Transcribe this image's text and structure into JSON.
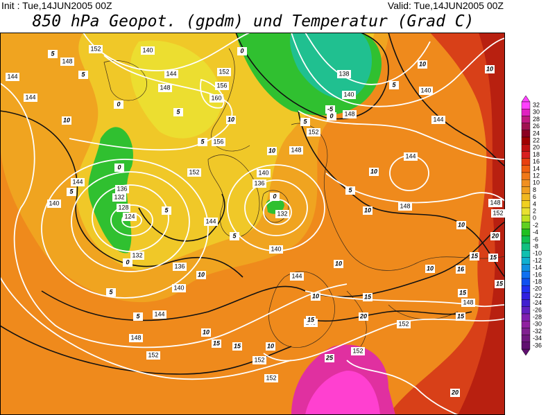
{
  "header": {
    "init": "Init : Tue,14JUN2005 00Z",
    "valid": "Valid: Tue,14JUN2005 00Z",
    "title": "850 hPa Geopot. (gpdm) und Temperatur (Grad C)"
  },
  "colorbar": {
    "levels": [
      32,
      30,
      28,
      26,
      24,
      22,
      20,
      18,
      16,
      14,
      12,
      10,
      8,
      6,
      4,
      2,
      0,
      -2,
      -4,
      -6,
      -8,
      -10,
      -12,
      -14,
      -16,
      -18,
      -20,
      -22,
      -24,
      -26,
      -28,
      -30,
      -32,
      -34,
      -36
    ],
    "colors": [
      "#ff40ff",
      "#e020c0",
      "#c01880",
      "#a01050",
      "#8b0020",
      "#a00000",
      "#c01010",
      "#d82020",
      "#e84010",
      "#f06010",
      "#f07818",
      "#f09020",
      "#f0a020",
      "#f0b820",
      "#f0d020",
      "#e8e030",
      "#c0e020",
      "#60d020",
      "#20c020",
      "#10c050",
      "#10c080",
      "#10c0b0",
      "#10b0d0",
      "#1090e0",
      "#1070f0",
      "#1050f0",
      "#2030f0",
      "#3020e0",
      "#4020d0",
      "#6020c0",
      "#8020b0",
      "#9020a0",
      "#802090",
      "#701880",
      "#601070"
    ]
  },
  "geopotential_labels": [
    152,
    140,
    148,
    144,
    148,
    152,
    156,
    160,
    156,
    152,
    138,
    140,
    148,
    152,
    148,
    144,
    144,
    144,
    140,
    136,
    132,
    128,
    124,
    132,
    136,
    140,
    144,
    148,
    152,
    140,
    136,
    132,
    140,
    144,
    144,
    148,
    144,
    140,
    144,
    148,
    152,
    148,
    152,
    152,
    152,
    148,
    152
  ],
  "temperature_labels": [
    0,
    5,
    5,
    5,
    10,
    10,
    -5,
    0,
    5,
    10,
    10,
    0,
    0,
    5,
    10,
    5,
    5,
    10,
    0,
    0,
    5,
    5,
    10,
    5,
    10,
    10,
    10,
    15,
    10,
    15,
    15,
    10,
    15,
    20,
    25,
    20,
    15,
    15,
    15,
    16,
    10,
    10,
    15,
    20,
    15,
    5,
    5
  ]
}
